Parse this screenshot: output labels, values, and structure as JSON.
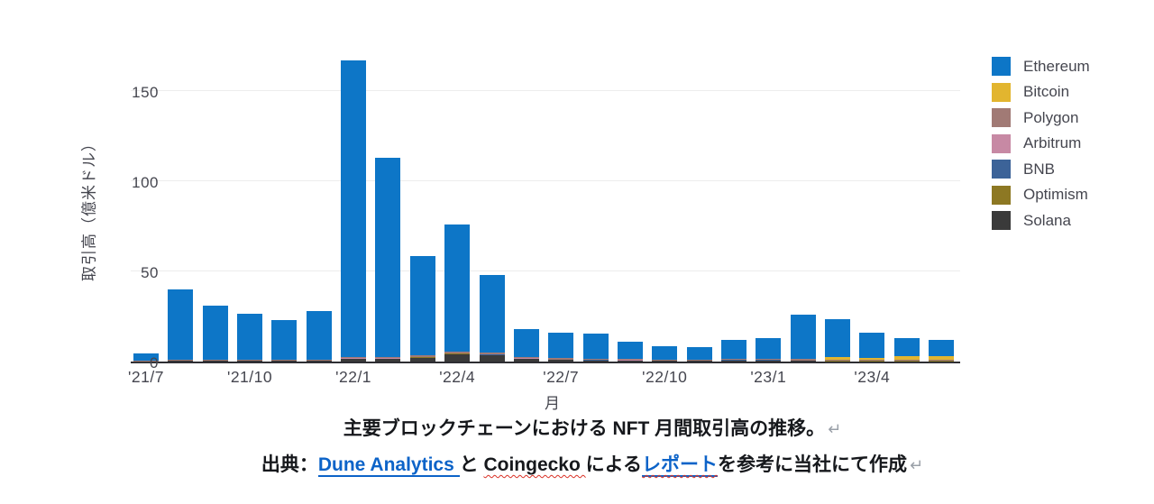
{
  "chart_data": {
    "type": "bar",
    "stacked": true,
    "title": "",
    "xlabel": "月",
    "ylabel": "取引高（億米ドル）",
    "ylim": [
      0,
      180
    ],
    "yticks": [
      0,
      50,
      100,
      150
    ],
    "grid": true,
    "legend_position": "right",
    "label_every": 3,
    "months": [
      "'21/7",
      "'21/8",
      "'21/9",
      "'21/10",
      "'21/11",
      "'21/12",
      "'22/1",
      "'22/2",
      "'22/3",
      "'22/4",
      "'22/5",
      "'22/6",
      "'22/7",
      "'22/8",
      "'22/9",
      "'22/10",
      "'22/11",
      "'22/12",
      "'23/1",
      "'23/2",
      "'23/3",
      "'23/4",
      "'23/5",
      "'23/6"
    ],
    "stack_order_bottom_to_top": [
      "Solana",
      "Optimism",
      "BNB",
      "Arbitrum",
      "Polygon",
      "Bitcoin",
      "Ethereum"
    ],
    "series": [
      {
        "name": "Ethereum",
        "color": "#0d76c7",
        "values": [
          4.0,
          39.0,
          30.0,
          25.5,
          22.0,
          26.8,
          164.5,
          110.5,
          55.0,
          70.5,
          43.0,
          15.3,
          14.3,
          13.8,
          9.5,
          7.5,
          6.8,
          10.8,
          11.3,
          24.5,
          21.0,
          14.2,
          10.0,
          9.2
        ]
      },
      {
        "name": "Bitcoin",
        "color": "#e2b52f",
        "values": [
          0,
          0,
          0,
          0,
          0,
          0,
          0,
          0,
          0,
          0,
          0,
          0,
          0,
          0,
          0,
          0,
          0,
          0,
          0,
          0,
          1.2,
          1.0,
          2.3,
          2.0
        ]
      },
      {
        "name": "Polygon",
        "color": "#a17a75",
        "values": [
          0.3,
          0.5,
          0.5,
          0.5,
          0.5,
          0.5,
          0.8,
          0.8,
          1.0,
          1.0,
          1.0,
          0.7,
          0.7,
          0.7,
          0.5,
          0.5,
          0.5,
          0.5,
          0.7,
          0.8,
          0.5,
          0.4,
          0.3,
          0.3
        ]
      },
      {
        "name": "Arbitrum",
        "color": "#c789a4",
        "values": [
          0,
          0,
          0,
          0,
          0,
          0,
          0.1,
          0.1,
          0.1,
          0.1,
          0.1,
          0.1,
          0.1,
          0.1,
          0.1,
          0.1,
          0.1,
          0.1,
          0.2,
          0.2,
          0.2,
          0.1,
          0.1,
          0.1
        ]
      },
      {
        "name": "BNB",
        "color": "#3c6398",
        "values": [
          0,
          0,
          0,
          0,
          0,
          0,
          0.2,
          0.2,
          0.2,
          0.2,
          0.2,
          0.2,
          0.1,
          0.1,
          0.1,
          0.1,
          0.1,
          0.1,
          0.1,
          0.1,
          0.1,
          0.1,
          0.1,
          0.1
        ]
      },
      {
        "name": "Optimism",
        "color": "#8d7823",
        "values": [
          0,
          0,
          0,
          0,
          0,
          0,
          0,
          0,
          0.1,
          0.1,
          0.1,
          0.1,
          0.1,
          0.1,
          0.1,
          0.1,
          0.1,
          0.1,
          0.1,
          0.1,
          0.1,
          0.1,
          0.1,
          0.1
        ]
      },
      {
        "name": "Solana",
        "color": "#3a3a3a",
        "values": [
          0.2,
          0.5,
          0.5,
          0.5,
          0.5,
          0.7,
          1.5,
          1.5,
          2.2,
          4.2,
          3.6,
          1.4,
          0.8,
          0.6,
          0.5,
          0.3,
          0.3,
          0.6,
          0.6,
          0.3,
          0.2,
          0.2,
          0.2,
          0.2
        ]
      }
    ]
  },
  "caption": {
    "line1": "主要ブロックチェーンにおける NFT 月間取引高の推移。",
    "break_mark": "↵",
    "line2_prefix": "出典：",
    "link1": "Dune Analytics ",
    "mid1": "と ",
    "spellcheck_word": "Coingecko ",
    "mid2": "による",
    "link2": "レポート",
    "line2_suffix": "を参考に当社にて作成"
  }
}
